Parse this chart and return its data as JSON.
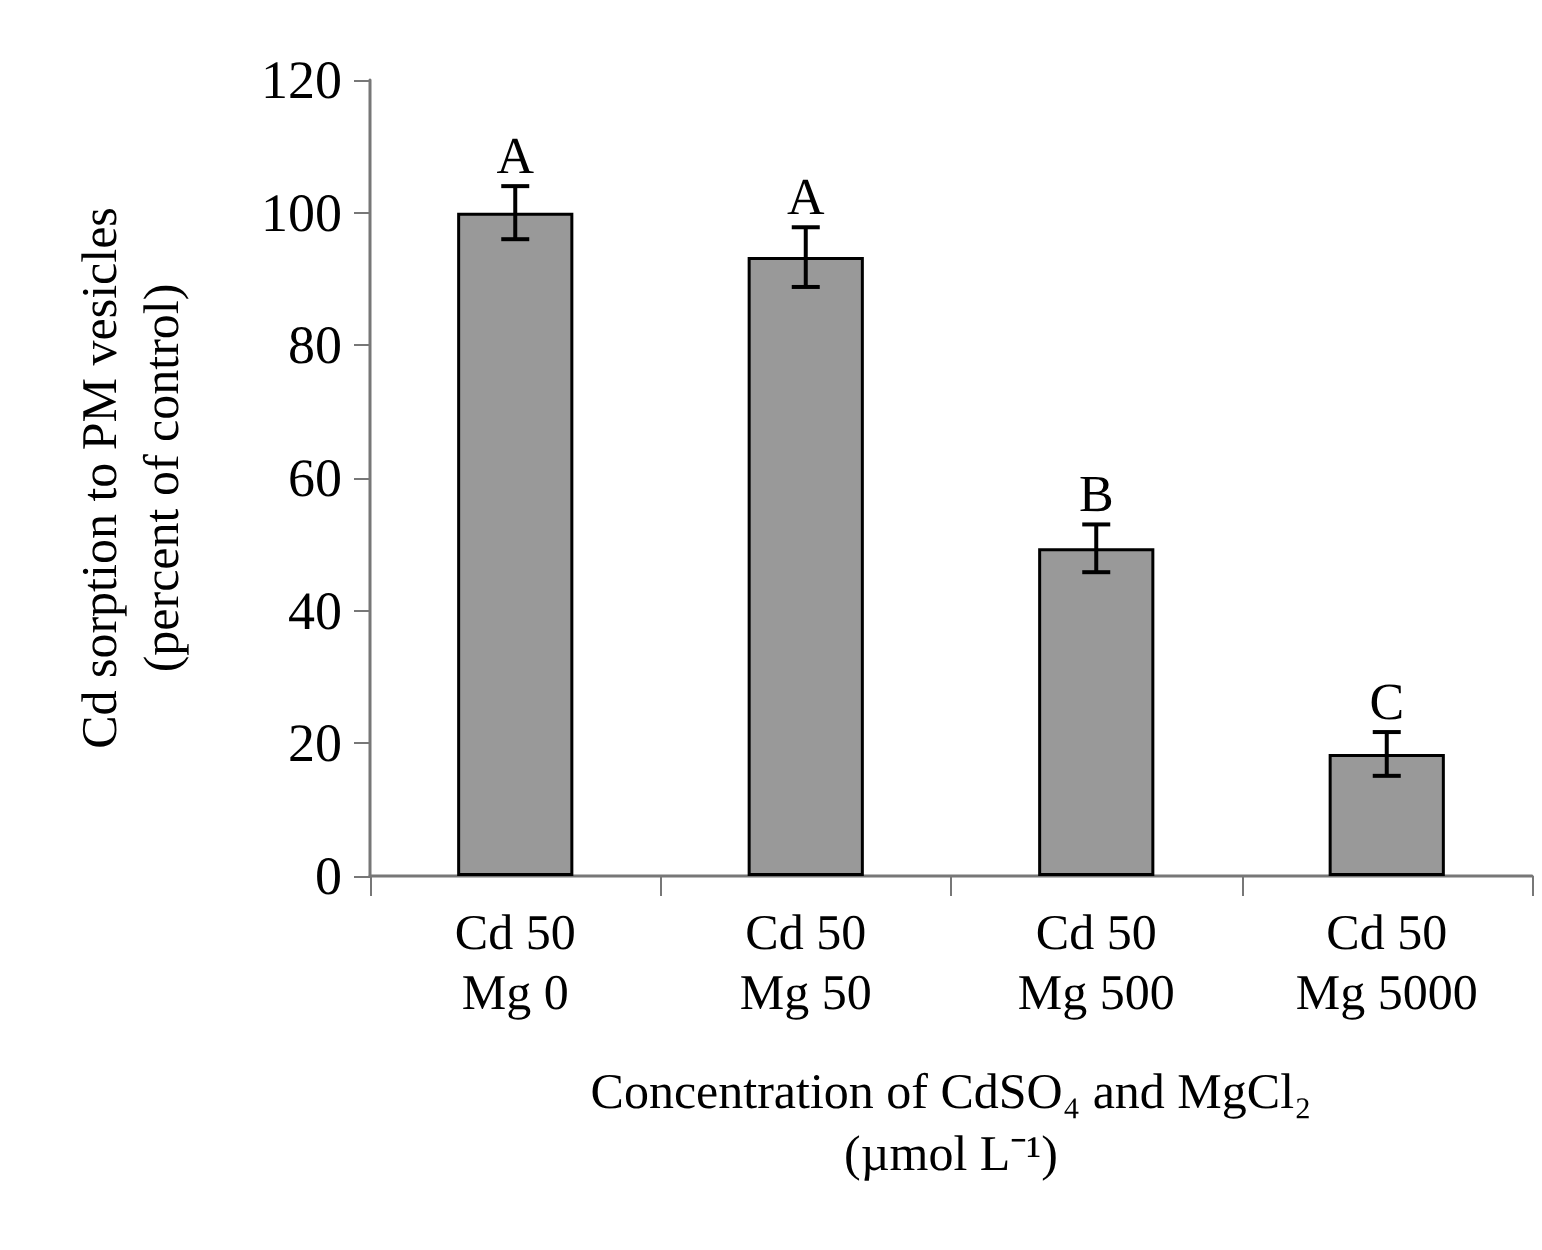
{
  "chart_data": {
    "type": "bar",
    "categories": [
      "Cd 50\nMg 0",
      "Cd 50\nMg 50",
      "Cd 50\nMg 500",
      "Cd 50\nMg 5000"
    ],
    "values": [
      100,
      93.3,
      49.4,
      18.4
    ],
    "errors": [
      4,
      4.5,
      3.6,
      3.3
    ],
    "color": "#999999",
    "xlabel": "Concentration of CdSO₄ and MgCl₂\n(µmol L⁻¹)",
    "ylabel": "Cd sorption to PM vesicles\n(percent of control)",
    "ylim": [
      0,
      120
    ],
    "yticks": [
      0,
      20,
      40,
      60,
      80,
      100,
      120
    ],
    "annotations": [
      {
        "text": "A",
        "x": "Cd 50\nMg 0",
        "y": 104
      },
      {
        "text": "A",
        "x": "Cd 50\nMg 50",
        "y": 97.8
      },
      {
        "text": "B",
        "x": "Cd 50\nMg 500",
        "y": 53
      },
      {
        "text": "C",
        "x": "Cd 50\nMg 5000",
        "y": 21.7
      }
    ],
    "grid": false
  }
}
